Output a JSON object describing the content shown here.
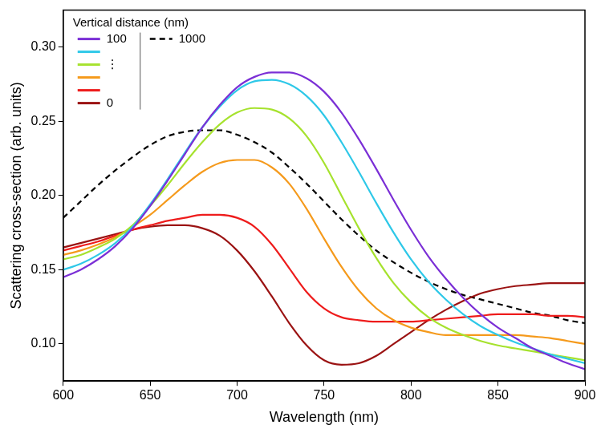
{
  "chart_data": {
    "type": "line",
    "x_label": "Wavelength (nm)",
    "y_label": "Scattering cross-section (arb. units)",
    "legend_title": "Vertical distance (nm)",
    "legend": "upper left",
    "grid": false,
    "xlim": [
      600,
      900
    ],
    "xticks": [
      600,
      650,
      700,
      750,
      800,
      850,
      900
    ],
    "ylim": [
      0.075,
      0.325
    ],
    "yticks": [
      {
        "value": 0.1,
        "label": "0.10"
      },
      {
        "value": 0.15,
        "label": "0.15"
      },
      {
        "value": 0.2,
        "label": "0.20"
      },
      {
        "value": 0.25,
        "label": "0.25"
      },
      {
        "value": 0.3,
        "label": "0.30"
      }
    ],
    "x": [
      600,
      610,
      620,
      630,
      640,
      650,
      660,
      670,
      680,
      690,
      700,
      710,
      720,
      730,
      740,
      750,
      760,
      770,
      780,
      790,
      800,
      810,
      820,
      830,
      840,
      850,
      860,
      870,
      880,
      890,
      900
    ],
    "series": [
      {
        "name": "100",
        "color": "#7b2fd6",
        "line_style": "solid",
        "values": [
          0.145,
          0.15,
          0.157,
          0.166,
          0.178,
          0.193,
          0.21,
          0.228,
          0.246,
          0.261,
          0.273,
          0.28,
          0.283,
          0.283,
          0.279,
          0.27,
          0.256,
          0.238,
          0.218,
          0.197,
          0.177,
          0.159,
          0.144,
          0.131,
          0.12,
          0.111,
          0.104,
          0.097,
          0.092,
          0.087,
          0.083
        ]
      },
      {
        "color": "#2ec8e8",
        "line_style": "solid",
        "values": [
          0.15,
          0.154,
          0.16,
          0.168,
          0.179,
          0.194,
          0.211,
          0.229,
          0.246,
          0.26,
          0.271,
          0.277,
          0.278,
          0.275,
          0.267,
          0.254,
          0.236,
          0.216,
          0.195,
          0.175,
          0.157,
          0.142,
          0.13,
          0.12,
          0.112,
          0.106,
          0.101,
          0.097,
          0.093,
          0.09,
          0.087
        ]
      },
      {
        "name": "⋮",
        "color": "#a6e22e",
        "line_style": "solid",
        "values": [
          0.157,
          0.16,
          0.165,
          0.171,
          0.18,
          0.193,
          0.207,
          0.222,
          0.236,
          0.248,
          0.256,
          0.259,
          0.258,
          0.252,
          0.24,
          0.222,
          0.2,
          0.178,
          0.158,
          0.141,
          0.128,
          0.118,
          0.111,
          0.106,
          0.102,
          0.099,
          0.097,
          0.095,
          0.093,
          0.091,
          0.089
        ]
      },
      {
        "color": "#f59a1c",
        "line_style": "solid",
        "values": [
          0.16,
          0.163,
          0.167,
          0.172,
          0.179,
          0.187,
          0.197,
          0.207,
          0.216,
          0.222,
          0.224,
          0.224,
          0.219,
          0.208,
          0.191,
          0.171,
          0.152,
          0.136,
          0.124,
          0.116,
          0.111,
          0.108,
          0.106,
          0.106,
          0.106,
          0.106,
          0.106,
          0.105,
          0.104,
          0.102,
          0.1
        ]
      },
      {
        "color": "#ee1c1c",
        "line_style": "solid",
        "values": [
          0.163,
          0.166,
          0.169,
          0.173,
          0.177,
          0.18,
          0.183,
          0.185,
          0.187,
          0.187,
          0.185,
          0.179,
          0.167,
          0.151,
          0.135,
          0.124,
          0.118,
          0.116,
          0.115,
          0.115,
          0.115,
          0.116,
          0.117,
          0.118,
          0.119,
          0.12,
          0.12,
          0.12,
          0.119,
          0.119,
          0.118
        ]
      },
      {
        "name": "0",
        "color": "#9b1313",
        "line_style": "solid",
        "values": [
          0.165,
          0.168,
          0.171,
          0.174,
          0.177,
          0.179,
          0.18,
          0.18,
          0.178,
          0.173,
          0.163,
          0.149,
          0.132,
          0.114,
          0.099,
          0.089,
          0.086,
          0.087,
          0.092,
          0.1,
          0.108,
          0.116,
          0.123,
          0.129,
          0.134,
          0.137,
          0.139,
          0.14,
          0.141,
          0.141,
          0.141
        ]
      },
      {
        "name": "1000",
        "color": "#000000",
        "line_style": "dashed",
        "values": [
          0.185,
          0.196,
          0.207,
          0.217,
          0.226,
          0.234,
          0.24,
          0.243,
          0.244,
          0.244,
          0.241,
          0.236,
          0.229,
          0.219,
          0.208,
          0.196,
          0.184,
          0.173,
          0.163,
          0.155,
          0.148,
          0.142,
          0.137,
          0.133,
          0.13,
          0.127,
          0.124,
          0.121,
          0.119,
          0.116,
          0.114
        ]
      }
    ]
  }
}
